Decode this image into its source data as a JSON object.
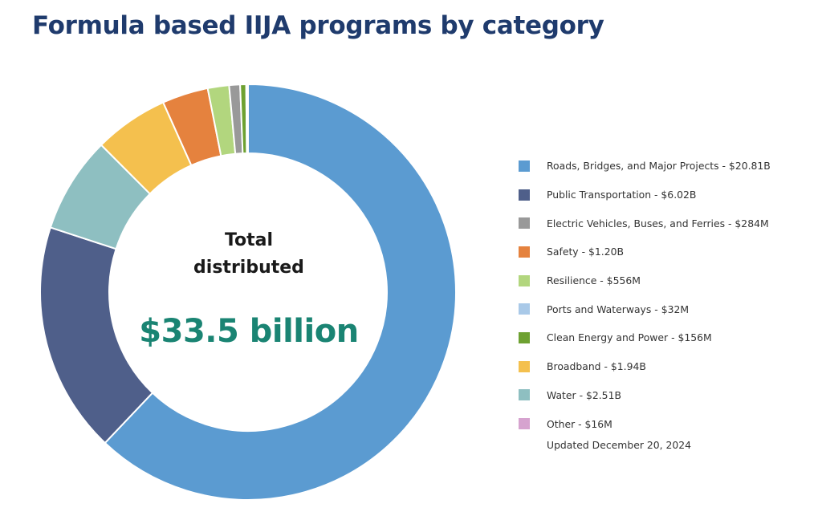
{
  "title": "Formula based IIJA programs by category",
  "center": {
    "line1": "Total",
    "line2": "distributed",
    "value": "$33.5 billion"
  },
  "updated": "Updated December 20, 2024",
  "chart_data": {
    "type": "pie",
    "variant": "donut",
    "title": "Formula based IIJA programs by category",
    "total_label": "$33.5 billion",
    "legend_position": "right",
    "slice_order": [
      "Roads, Bridges, and Major Projects",
      "Public Transportation",
      "Water",
      "Broadband",
      "Safety",
      "Resilience",
      "Electric Vehicles, Buses, and Ferries",
      "Clean Energy and Power",
      "Ports and Waterways",
      "Other"
    ],
    "series": [
      {
        "name": "Roads, Bridges, and Major Projects",
        "value": 20.81,
        "unit": "B",
        "color": "#5b9bd1",
        "label": "Roads, Bridges, and Major Projects - $20.81B"
      },
      {
        "name": "Public Transportation",
        "value": 6.02,
        "unit": "B",
        "color": "#4f5f8a",
        "label": "Public Transportation - $6.02B"
      },
      {
        "name": "Electric Vehicles, Buses, and Ferries",
        "value": 0.284,
        "unit": "B",
        "color": "#999999",
        "label": "Electric Vehicles, Buses, and Ferries - $284M"
      },
      {
        "name": "Safety",
        "value": 1.2,
        "unit": "B",
        "color": "#e5823e",
        "label": "Safety - $1.20B"
      },
      {
        "name": "Resilience",
        "value": 0.556,
        "unit": "B",
        "color": "#b2d67e",
        "label": "Resilience - $556M"
      },
      {
        "name": "Ports and Waterways",
        "value": 0.032,
        "unit": "B",
        "color": "#a9c9e8",
        "label": "Ports and Waterways - $32M"
      },
      {
        "name": "Clean Energy and Power",
        "value": 0.156,
        "unit": "B",
        "color": "#6ea131",
        "label": "Clean Energy and Power - $156M"
      },
      {
        "name": "Broadband",
        "value": 1.94,
        "unit": "B",
        "color": "#f4c04e",
        "label": "Broadband - $1.94B"
      },
      {
        "name": "Water",
        "value": 2.51,
        "unit": "B",
        "color": "#8ebfc1",
        "label": "Water - $2.51B"
      },
      {
        "name": "Other",
        "value": 0.016,
        "unit": "B",
        "color": "#d6a3cf",
        "label": "Other - $16M"
      }
    ]
  }
}
